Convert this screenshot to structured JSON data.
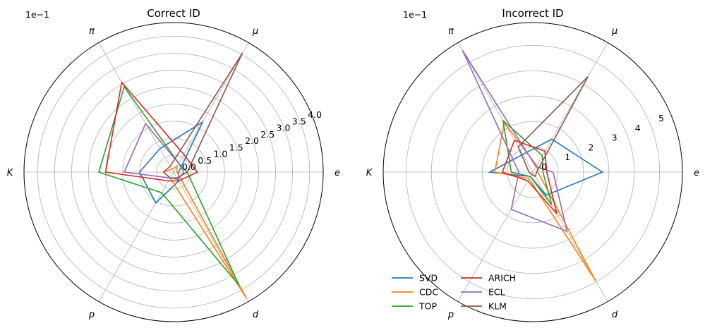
{
  "chart_data": [
    {
      "type": "radar",
      "title": "Correct ID",
      "scale_label": "1e−1",
      "categories": [
        "e",
        "μ",
        "π",
        "K",
        "p",
        "d"
      ],
      "rlim": [
        0,
        4.4
      ],
      "rticks": [
        0.0,
        0.5,
        1.0,
        1.5,
        2.0,
        2.5,
        3.0,
        3.5,
        4.0
      ],
      "rtick_labels": [
        "0.0",
        "0.5",
        "1.0",
        "1.5",
        "2.0",
        "2.5",
        "3.0",
        "3.5",
        "4.0"
      ],
      "grid": true,
      "series": [
        {
          "name": "SVD",
          "color": "#1f77b4",
          "values": [
            0.15,
            1.7,
            0.8,
            1.0,
            1.05,
            0.3
          ]
        },
        {
          "name": "CDC",
          "color": "#ff7f0e",
          "values": [
            0.1,
            0.2,
            0.1,
            0.3,
            0.2,
            4.3
          ]
        },
        {
          "name": "TOP",
          "color": "#2ca02c",
          "values": [
            0.4,
            0.3,
            2.9,
            2.2,
            0.7,
            3.85
          ]
        },
        {
          "name": "ARICH",
          "color": "#d62728",
          "values": [
            0.7,
            0.6,
            3.05,
            2.0,
            0.3,
            0.3
          ]
        },
        {
          "name": "ECL",
          "color": "#9467bd",
          "values": [
            0.3,
            0.3,
            1.65,
            1.45,
            0.2,
            0.25
          ]
        },
        {
          "name": "KLM",
          "color": "#8c564b",
          "values": [
            0.4,
            4.05,
            0.2,
            0.3,
            0.2,
            0.2
          ]
        }
      ]
    },
    {
      "type": "radar",
      "title": "Incorrect ID",
      "scale_label": "1e−1",
      "categories": [
        "e",
        "μ",
        "π",
        "K",
        "p",
        "d"
      ],
      "rlim": [
        0,
        5.9
      ],
      "rticks": [
        0,
        1,
        2,
        3,
        4,
        5
      ],
      "rtick_labels": [
        "0",
        "1",
        "2",
        "3",
        "4",
        "5"
      ],
      "grid": true,
      "legend": "lower-left",
      "series": [
        {
          "name": "SVD",
          "color": "#1f77b4",
          "values": [
            2.75,
            1.5,
            0.8,
            1.7,
            0.2,
            1.05
          ]
        },
        {
          "name": "CDC",
          "color": "#ff7f0e",
          "values": [
            0.2,
            0.3,
            2.25,
            1.5,
            0.3,
            4.95
          ]
        },
        {
          "name": "TOP",
          "color": "#2ca02c",
          "values": [
            0.4,
            0.75,
            2.35,
            0.85,
            0.2,
            1.5
          ]
        },
        {
          "name": "ARICH",
          "color": "#d62728",
          "values": [
            0.55,
            0.95,
            1.45,
            1.2,
            0.4,
            1.9
          ]
        },
        {
          "name": "ECL",
          "color": "#9467bd",
          "values": [
            0.8,
            0.25,
            5.55,
            0.55,
            1.7,
            2.7
          ]
        },
        {
          "name": "KLM",
          "color": "#8c564b",
          "values": [
            0.15,
            4.35,
            1.15,
            0.15,
            0.1,
            0.2
          ]
        }
      ]
    }
  ]
}
